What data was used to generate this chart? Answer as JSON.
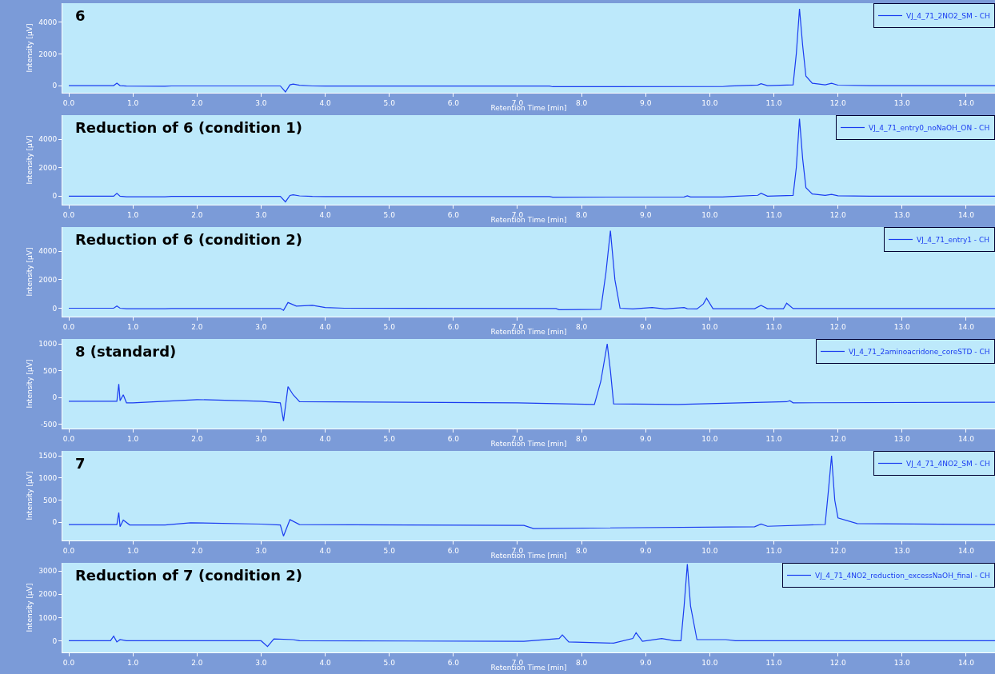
{
  "chart_data": [
    {
      "type": "line",
      "title": "6",
      "xlabel": "Retention Time [min]",
      "ylabel": "Intensity [µV]",
      "legend": "top right",
      "grid": false,
      "x": [
        0,
        0.7,
        0.75,
        0.8,
        0.9,
        1.5,
        1.6,
        3.3,
        3.38,
        3.45,
        3.5,
        3.6,
        3.8,
        4.0,
        7.5,
        7.55,
        10.2,
        10.3,
        10.75,
        10.8,
        10.9,
        11.3,
        11.35,
        11.4,
        11.45,
        11.5,
        11.6,
        11.8,
        11.9,
        12.0,
        12.5,
        14.45
      ],
      "series": [
        {
          "name": "VJ_4_71_2NO2_SM - CH",
          "color": "#1a3cf0",
          "values": [
            0,
            0,
            150,
            0,
            -30,
            -40,
            -20,
            -20,
            -400,
            50,
            100,
            20,
            -20,
            -30,
            -30,
            -70,
            -60,
            -30,
            40,
            120,
            0,
            50,
            2000,
            4850,
            2500,
            600,
            150,
            50,
            150,
            30,
            0,
            0
          ]
        }
      ],
      "xlim": [
        -0.1,
        14.45
      ],
      "xticks": [
        {
          "value": 0,
          "label": "0.0"
        },
        {
          "value": 1,
          "label": "1.0"
        },
        {
          "value": 2,
          "label": "2.0"
        },
        {
          "value": 3,
          "label": "3.0"
        },
        {
          "value": 4,
          "label": "4.0"
        },
        {
          "value": 5,
          "label": "5.0"
        },
        {
          "value": 6,
          "label": "6.0"
        },
        {
          "value": 7,
          "label": "7.0"
        },
        {
          "value": 8,
          "label": "8.0"
        },
        {
          "value": 9,
          "label": "9.0"
        },
        {
          "value": 10,
          "label": "10.0"
        },
        {
          "value": 11,
          "label": "11.0"
        },
        {
          "value": 12,
          "label": "12.0"
        },
        {
          "value": 13,
          "label": "13.0"
        },
        {
          "value": 14,
          "label": "14.0"
        }
      ],
      "ylim": [
        -450,
        5200
      ],
      "yticks": [
        0,
        2000,
        4000
      ]
    },
    {
      "type": "line",
      "title": "Reduction of 6 (condition 1)",
      "xlabel": "Retention Time [min]",
      "ylabel": "Intensity [µV]",
      "legend": "top right",
      "grid": false,
      "x": [
        0,
        0.7,
        0.75,
        0.8,
        0.9,
        1.5,
        1.6,
        3.3,
        3.38,
        3.45,
        3.5,
        3.6,
        3.8,
        4.0,
        7.5,
        7.55,
        9.6,
        9.65,
        9.7,
        10.2,
        10.3,
        10.75,
        10.8,
        10.9,
        11.3,
        11.35,
        11.4,
        11.45,
        11.5,
        11.6,
        11.8,
        11.9,
        12.0,
        12.5,
        14.45
      ],
      "series": [
        {
          "name": "VJ_4_71_entry0_noNaOH_ON - CH",
          "color": "#1a3cf0",
          "values": [
            0,
            0,
            200,
            0,
            -40,
            -40,
            -20,
            -20,
            -400,
            50,
            100,
            20,
            -20,
            -30,
            -30,
            -70,
            -60,
            20,
            -60,
            -60,
            -30,
            60,
            200,
            0,
            50,
            2000,
            5450,
            2600,
            600,
            150,
            50,
            120,
            30,
            0,
            0
          ]
        }
      ],
      "xlim": [
        -0.1,
        14.45
      ],
      "xticks": [
        {
          "value": 0,
          "label": "0.0"
        },
        {
          "value": 1,
          "label": "1.0"
        },
        {
          "value": 2,
          "label": "2.0"
        },
        {
          "value": 3,
          "label": "3.0"
        },
        {
          "value": 4,
          "label": "4.0"
        },
        {
          "value": 5,
          "label": "5.0"
        },
        {
          "value": 6,
          "label": "6.0"
        },
        {
          "value": 7,
          "label": "7.0"
        },
        {
          "value": 8,
          "label": "8.0"
        },
        {
          "value": 9,
          "label": "9.0"
        },
        {
          "value": 10,
          "label": "10.0"
        },
        {
          "value": 11,
          "label": "11.0"
        },
        {
          "value": 12,
          "label": "12.0"
        },
        {
          "value": 13,
          "label": "13.0"
        },
        {
          "value": 14,
          "label": "14.0"
        }
      ],
      "ylim": [
        -600,
        5700
      ],
      "yticks": [
        0,
        2000,
        4000
      ]
    },
    {
      "type": "line",
      "title": "Reduction of 6 (condition 2)",
      "xlabel": "Retention Time [min]",
      "ylabel": "Intensity [µV]",
      "legend": "top right",
      "grid": false,
      "x": [
        0,
        0.7,
        0.75,
        0.8,
        0.9,
        1.5,
        1.6,
        3.3,
        3.35,
        3.42,
        3.55,
        3.8,
        4.0,
        4.3,
        7.6,
        7.65,
        8.3,
        8.38,
        8.45,
        8.52,
        8.6,
        8.8,
        9.1,
        9.3,
        9.6,
        9.65,
        9.8,
        9.9,
        9.95,
        10.05,
        10.7,
        10.8,
        10.9,
        11.15,
        11.2,
        11.3,
        11.5,
        14.45
      ],
      "series": [
        {
          "name": "VJ_4_71_entry1 - CH",
          "color": "#1a3cf0",
          "values": [
            0,
            0,
            150,
            0,
            -30,
            -30,
            -20,
            -20,
            -150,
            400,
            150,
            200,
            50,
            0,
            -20,
            -100,
            -80,
            2500,
            5450,
            2000,
            0,
            -50,
            50,
            -50,
            50,
            -30,
            -50,
            300,
            700,
            -30,
            -30,
            200,
            -30,
            -30,
            350,
            -20,
            -20,
            -20
          ]
        }
      ],
      "xlim": [
        -0.1,
        14.45
      ],
      "xticks": [
        {
          "value": 0,
          "label": "0.0"
        },
        {
          "value": 1,
          "label": "1.0"
        },
        {
          "value": 2,
          "label": "2.0"
        },
        {
          "value": 3,
          "label": "3.0"
        },
        {
          "value": 4,
          "label": "4.0"
        },
        {
          "value": 5,
          "label": "5.0"
        },
        {
          "value": 6,
          "label": "6.0"
        },
        {
          "value": 7,
          "label": "7.0"
        },
        {
          "value": 8,
          "label": "8.0"
        },
        {
          "value": 9,
          "label": "9.0"
        },
        {
          "value": 10,
          "label": "10.0"
        },
        {
          "value": 11,
          "label": "11.0"
        },
        {
          "value": 12,
          "label": "12.0"
        },
        {
          "value": 13,
          "label": "13.0"
        },
        {
          "value": 14,
          "label": "14.0"
        }
      ],
      "ylim": [
        -590,
        5700
      ],
      "yticks": [
        0,
        2000,
        4000
      ]
    },
    {
      "type": "line",
      "title": "8 (standard)",
      "xlabel": "Retention Time [min]",
      "ylabel": "Intensity [µV]",
      "legend": "top right",
      "grid": false,
      "x": [
        0,
        0.75,
        0.78,
        0.8,
        0.85,
        0.9,
        1.0,
        2.0,
        3.0,
        3.3,
        3.35,
        3.42,
        3.5,
        3.6,
        7.0,
        8.2,
        8.3,
        8.4,
        8.45,
        8.5,
        9.5,
        11.2,
        11.25,
        11.3,
        14.45
      ],
      "series": [
        {
          "name": "VJ_4_71_2aminoacridone_coreSTD - CH",
          "color": "#1a3cf0",
          "values": [
            -70,
            -70,
            250,
            -60,
            50,
            -100,
            -100,
            -40,
            -70,
            -100,
            -440,
            200,
            50,
            -80,
            -100,
            -130,
            300,
            1000,
            500,
            -120,
            -130,
            -80,
            -60,
            -100,
            -90
          ]
        }
      ],
      "xlim": [
        -0.1,
        14.45
      ],
      "xticks": [
        {
          "value": 0,
          "label": "0.0"
        },
        {
          "value": 1,
          "label": "1.0"
        },
        {
          "value": 2,
          "label": "2.0"
        },
        {
          "value": 3,
          "label": "3.0"
        },
        {
          "value": 4,
          "label": "4.0"
        },
        {
          "value": 5,
          "label": "5.0"
        },
        {
          "value": 6,
          "label": "6.0"
        },
        {
          "value": 7,
          "label": "7.0"
        },
        {
          "value": 8,
          "label": "8.0"
        },
        {
          "value": 9,
          "label": "9.0"
        },
        {
          "value": 10,
          "label": "10.0"
        },
        {
          "value": 11,
          "label": "11.0"
        },
        {
          "value": 12,
          "label": "12.0"
        },
        {
          "value": 13,
          "label": "13.0"
        },
        {
          "value": 14,
          "label": "14.0"
        }
      ],
      "ylim": [
        -580,
        1090
      ],
      "yticks": [
        -500,
        0,
        500,
        1000
      ]
    },
    {
      "type": "line",
      "title": "7",
      "xlabel": "Retention Time [min]",
      "ylabel": "Intensity [µV]",
      "legend": "top right",
      "grid": false,
      "x": [
        0,
        0.75,
        0.78,
        0.8,
        0.85,
        0.95,
        1.5,
        1.9,
        3.0,
        3.3,
        3.35,
        3.45,
        3.6,
        7.1,
        7.25,
        10.7,
        10.8,
        10.9,
        11.8,
        11.85,
        11.9,
        11.95,
        12.0,
        12.3,
        14.45
      ],
      "series": [
        {
          "name": "VJ_4_71_4NO2_SM - CH",
          "color": "#1a3cf0",
          "values": [
            -50,
            -50,
            220,
            -100,
            50,
            -60,
            -60,
            -10,
            -40,
            -60,
            -310,
            60,
            -50,
            -70,
            -140,
            -100,
            -40,
            -90,
            -50,
            700,
            1500,
            500,
            100,
            -30,
            -50
          ]
        }
      ],
      "xlim": [
        -0.1,
        14.45
      ],
      "xticks": [
        {
          "value": 0,
          "label": "0.0"
        },
        {
          "value": 1,
          "label": "1.0"
        },
        {
          "value": 2,
          "label": "2.0"
        },
        {
          "value": 3,
          "label": "3.0"
        },
        {
          "value": 4,
          "label": "4.0"
        },
        {
          "value": 5,
          "label": "5.0"
        },
        {
          "value": 6,
          "label": "6.0"
        },
        {
          "value": 7,
          "label": "7.0"
        },
        {
          "value": 8,
          "label": "8.0"
        },
        {
          "value": 9,
          "label": "9.0"
        },
        {
          "value": 10,
          "label": "10.0"
        },
        {
          "value": 11,
          "label": "11.0"
        },
        {
          "value": 12,
          "label": "12.0"
        },
        {
          "value": 13,
          "label": "13.0"
        },
        {
          "value": 14,
          "label": "14.0"
        }
      ],
      "ylim": [
        -410,
        1610
      ],
      "yticks": [
        0,
        500,
        1000,
        1500
      ]
    },
    {
      "type": "line",
      "title": "Reduction of 7 (condition 2)",
      "xlabel": "Retention Time [min]",
      "ylabel": "Intensity [µV]",
      "legend": "top right",
      "grid": false,
      "x": [
        0,
        0.65,
        0.7,
        0.75,
        0.8,
        0.9,
        1.5,
        3.0,
        3.1,
        3.2,
        3.5,
        3.6,
        7.1,
        7.65,
        7.7,
        7.8,
        8.5,
        8.8,
        8.85,
        8.95,
        9.25,
        9.45,
        9.55,
        9.6,
        9.65,
        9.7,
        9.8,
        10.25,
        10.4,
        14.45
      ],
      "series": [
        {
          "name": "VJ_4_71_4NO2_reduction_excessNaOH_final - CH",
          "color": "#1a3cf0",
          "values": [
            0,
            0,
            200,
            -50,
            50,
            0,
            0,
            0,
            -250,
            80,
            50,
            0,
            -20,
            100,
            250,
            -50,
            -100,
            100,
            350,
            -20,
            100,
            0,
            0,
            1500,
            3300,
            1500,
            50,
            50,
            0,
            0
          ]
        }
      ],
      "xlim": [
        -0.1,
        14.45
      ],
      "xticks": [
        {
          "value": 0,
          "label": "0.0"
        },
        {
          "value": 1,
          "label": "1.0"
        },
        {
          "value": 2,
          "label": "2.0"
        },
        {
          "value": 3,
          "label": "3.0"
        },
        {
          "value": 4,
          "label": "4.0"
        },
        {
          "value": 5,
          "label": "5.0"
        },
        {
          "value": 6,
          "label": "6.0"
        },
        {
          "value": 7,
          "label": "7.0"
        },
        {
          "value": 8,
          "label": "8.0"
        },
        {
          "value": 9,
          "label": "9.0"
        },
        {
          "value": 10,
          "label": "10.0"
        },
        {
          "value": 11,
          "label": "11.0"
        },
        {
          "value": 12,
          "label": "12.0"
        },
        {
          "value": 13,
          "label": "13.0"
        },
        {
          "value": 14,
          "label": "14.0"
        }
      ],
      "ylim": [
        -500,
        3350
      ],
      "yticks": [
        0,
        1000,
        2000,
        3000
      ]
    }
  ]
}
